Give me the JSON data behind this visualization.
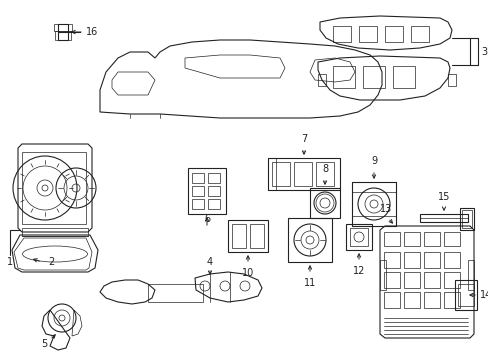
{
  "bg_color": "#ffffff",
  "line_color": "#222222",
  "label_color": "#000000",
  "figsize": [
    4.89,
    3.6
  ],
  "dpi": 100
}
